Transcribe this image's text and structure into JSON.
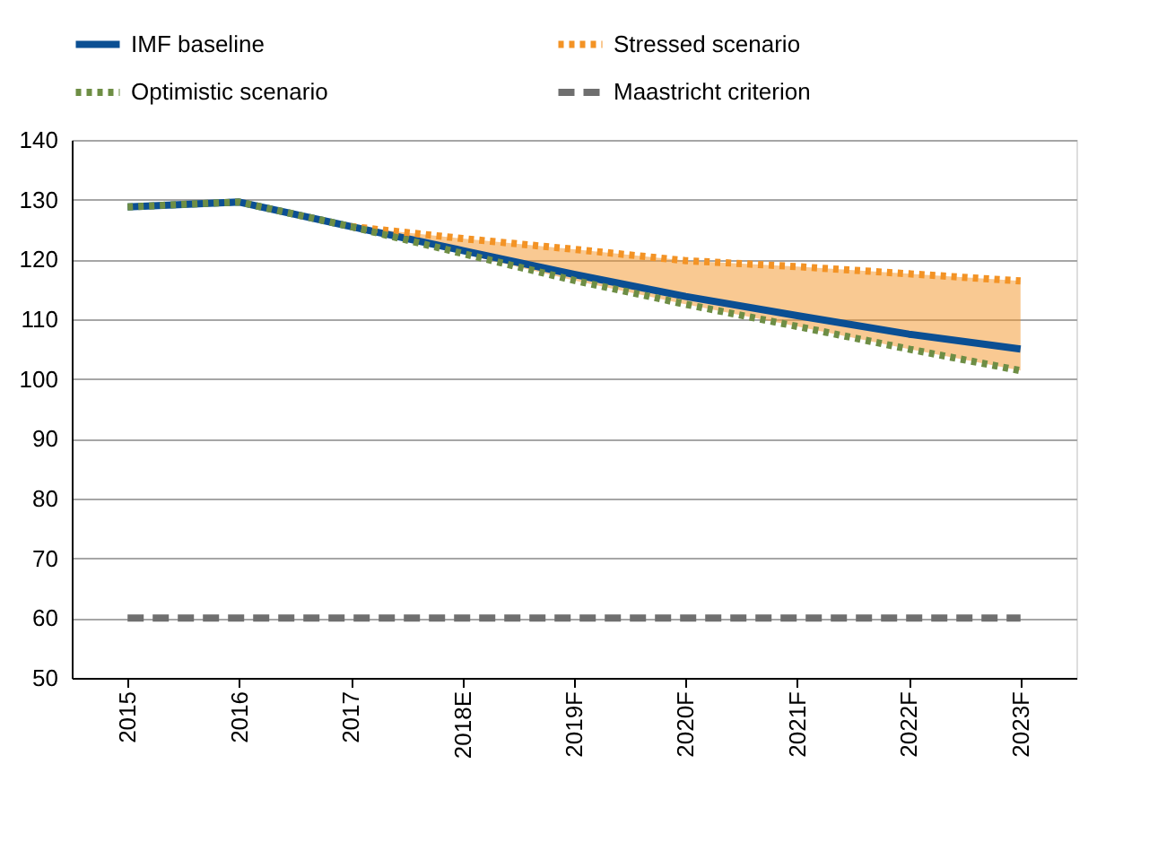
{
  "chart_data": {
    "type": "line",
    "categories": [
      "2015",
      "2016",
      "2017",
      "2018E",
      "2019F",
      "2020F",
      "2021F",
      "2022F",
      "2023F"
    ],
    "series": [
      {
        "name": "IMF baseline",
        "color": "#0b4f93",
        "line_style": "solid",
        "values": [
          128.8,
          129.6,
          125.5,
          121.5,
          117.5,
          113.8,
          110.6,
          107.5,
          105.0
        ]
      },
      {
        "name": "Stressed scenario",
        "color": "#f39325",
        "line_style": "dotted",
        "values": [
          null,
          null,
          125.5,
          123.5,
          121.7,
          119.8,
          118.8,
          117.6,
          116.4
        ],
        "lower": [
          null,
          null,
          125.5,
          121.0,
          116.5,
          112.5,
          108.8,
          105.0,
          101.4
        ],
        "upper": [
          null,
          null,
          125.5,
          123.5,
          121.7,
          119.8,
          118.8,
          117.6,
          116.4
        ]
      },
      {
        "name": "Optimistic scenario",
        "color": "#6e8e45",
        "line_style": "dotted",
        "values": [
          128.8,
          129.6,
          125.5,
          121.0,
          116.5,
          112.5,
          108.8,
          105.0,
          101.4
        ]
      },
      {
        "name": "Maastricht criterion",
        "color": "#6f6f6f",
        "line_style": "dashed",
        "values": [
          60,
          60,
          60,
          60,
          60,
          60,
          60,
          60,
          60
        ]
      }
    ],
    "ylim": [
      50,
      140
    ],
    "yticks": [
      50,
      60,
      70,
      80,
      90,
      100,
      110,
      120,
      130,
      140
    ],
    "grid": "y",
    "legend": "top",
    "marker": "none"
  }
}
